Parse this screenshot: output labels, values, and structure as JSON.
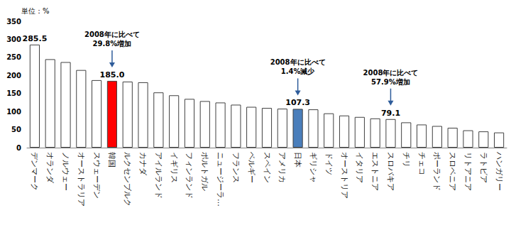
{
  "chart_data": {
    "type": "bar",
    "ylabel": "単位：%",
    "categories": [
      "デンマーク",
      "オランダ",
      "ノルウェー",
      "オーストラリア",
      "スウェーデン",
      "韓国",
      "ルクセンブルク",
      "カナダ",
      "アイルランド",
      "イギリス",
      "フィンランド",
      "ポルトガル",
      "ニュージーラ…",
      "フランス",
      "ベルギー",
      "スペイン",
      "アメリカ",
      "日本",
      "ギリシャ",
      "ドイツ",
      "オーストリア",
      "イタリア",
      "エストニア",
      "スロバキア",
      "チリ",
      "チェコ",
      "ポーランド",
      "スロベニア",
      "リトアニア",
      "ラトビア",
      "ハンガリー"
    ],
    "values": [
      285.5,
      245,
      237,
      215,
      187,
      185.0,
      183,
      181,
      153,
      145,
      135,
      129,
      125,
      119,
      113,
      110,
      108,
      107.3,
      106,
      95,
      89,
      85,
      81,
      79.1,
      70,
      64,
      60,
      55,
      48,
      45,
      42
    ],
    "value_labels": [
      "285.5",
      null,
      null,
      null,
      null,
      "185.0",
      null,
      null,
      null,
      null,
      null,
      null,
      null,
      null,
      null,
      null,
      null,
      "107.3",
      null,
      null,
      null,
      null,
      null,
      "79.1",
      null,
      null,
      null,
      null,
      null,
      null,
      null
    ],
    "colors": [
      "#ffffff",
      "#ffffff",
      "#ffffff",
      "#ffffff",
      "#ffffff",
      "#ff0000",
      "#ffffff",
      "#ffffff",
      "#ffffff",
      "#ffffff",
      "#ffffff",
      "#ffffff",
      "#ffffff",
      "#ffffff",
      "#ffffff",
      "#ffffff",
      "#ffffff",
      "#4a7ebb",
      "#ffffff",
      "#ffffff",
      "#ffffff",
      "#ffffff",
      "#ffffff",
      "#ffffff",
      "#ffffff",
      "#ffffff",
      "#ffffff",
      "#ffffff",
      "#ffffff",
      "#ffffff",
      "#ffffff"
    ],
    "ylim": [
      0,
      350
    ],
    "yticks": [
      0,
      50,
      100,
      150,
      200,
      250,
      300,
      350
    ],
    "grid": false,
    "annotations": [
      {
        "text": "2008年に比べて\n29.8%増加",
        "category": "韓国"
      },
      {
        "text": "2008年に比べて\n1.4%減少",
        "category": "日本"
      },
      {
        "text": "2008年に比べて\n57.9%増加",
        "category": "スロバキア"
      }
    ]
  }
}
